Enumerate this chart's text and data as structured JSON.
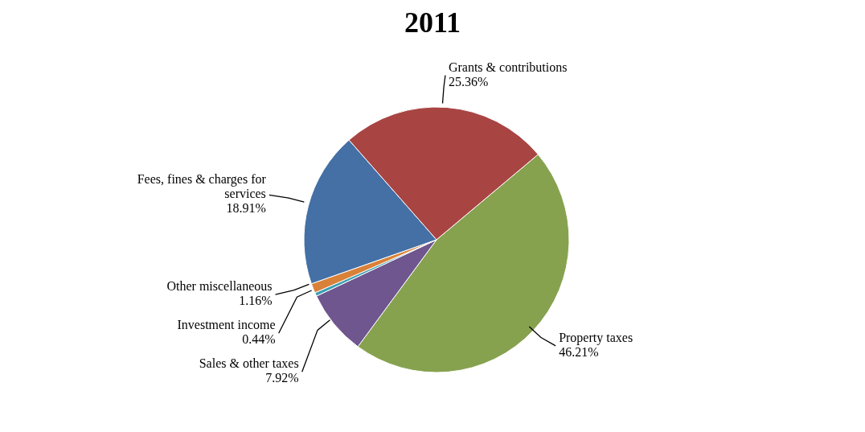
{
  "chart_data": {
    "type": "pie",
    "title": "2011",
    "categories": [
      "Property taxes",
      "Sales & other taxes",
      "Investment income",
      "Other miscellaneous",
      "Fees, fines & charges for services",
      "Grants & contributions"
    ],
    "values": [
      46.21,
      7.92,
      0.44,
      1.16,
      18.91,
      25.36
    ],
    "value_labels": [
      "46.21%",
      "7.92%",
      "0.44%",
      "1.16%",
      "18.91%",
      "25.36%"
    ],
    "colors": [
      "#87a24f",
      "#6f568e",
      "#3ba0b6",
      "#d98138",
      "#4470a5",
      "#a84543"
    ]
  }
}
